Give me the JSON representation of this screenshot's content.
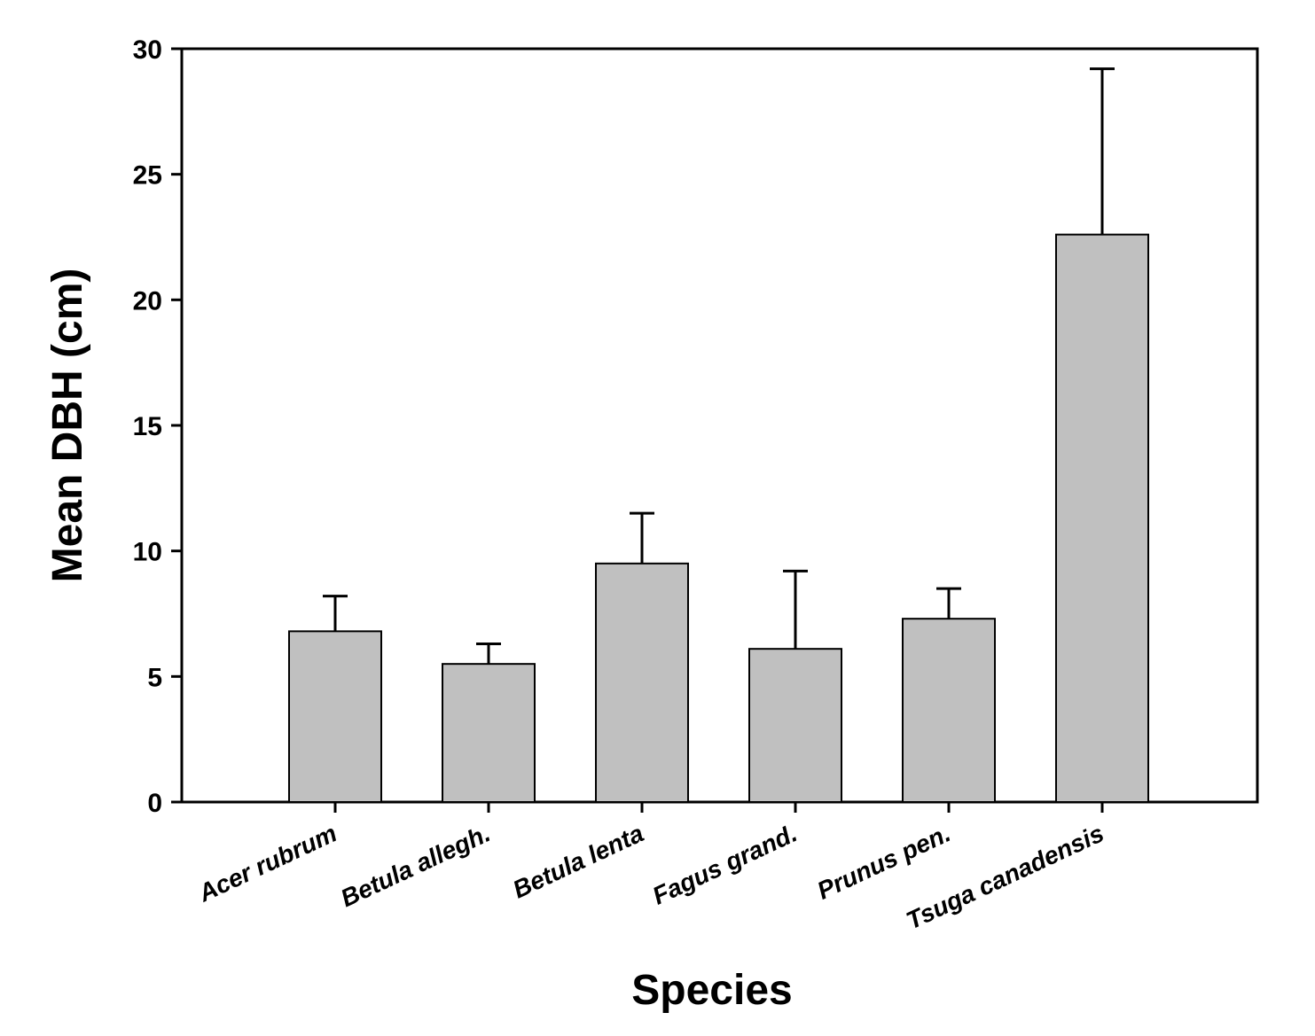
{
  "chart_data": {
    "type": "bar",
    "title": "",
    "xlabel": "Species",
    "ylabel": "Mean DBH (cm)",
    "ylim": [
      0,
      30
    ],
    "yticks": [
      0,
      5,
      10,
      15,
      20,
      25,
      30
    ],
    "grid": false,
    "legend": "none",
    "categories": [
      "Acer rubrum",
      "Betula allegh.",
      "Betula lenta",
      "Fagus grand.",
      "Prunus pen.",
      "Tsuga canadensis"
    ],
    "values": [
      6.8,
      5.5,
      9.5,
      6.1,
      7.3,
      22.6
    ],
    "error_upper": [
      1.4,
      0.8,
      2.0,
      3.1,
      1.2,
      6.6
    ],
    "colors": {
      "bar_fill": "#c0c0c0",
      "bar_stroke": "#000000",
      "axis": "#000000",
      "background": "#ffffff"
    }
  }
}
